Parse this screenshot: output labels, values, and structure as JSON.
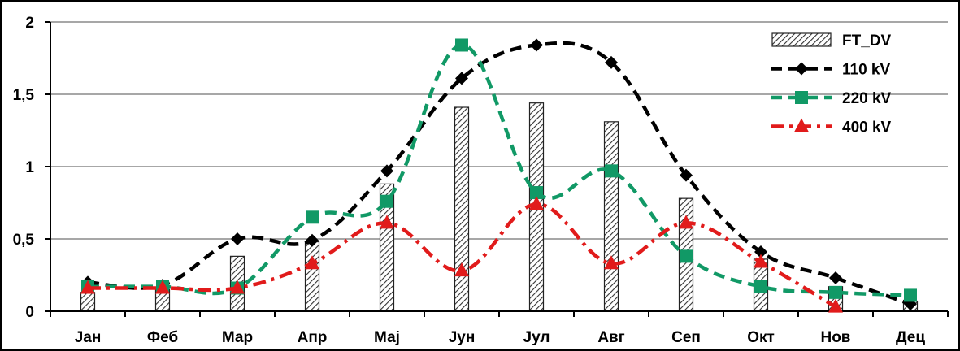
{
  "chart_data": {
    "type": "bar",
    "categories": [
      "Јан",
      "Феб",
      "Мар",
      "Апр",
      "Мај",
      "Јун",
      "Јул",
      "Авг",
      "Сеп",
      "Окт",
      "Нов",
      "Дец"
    ],
    "ylim": [
      0,
      2
    ],
    "yticks": [
      0,
      0.5,
      1,
      1.5,
      2
    ],
    "ytick_labels": [
      "0",
      "0,5",
      "1",
      "1,5",
      "2"
    ],
    "grid": true,
    "legend_position": "top-right",
    "title": "",
    "xlabel": "",
    "ylabel": "",
    "series": [
      {
        "name": "FT_DV",
        "kind": "bar",
        "pattern": "hatched",
        "color": "#555555",
        "values": [
          0.13,
          0.15,
          0.38,
          0.48,
          0.88,
          1.41,
          1.44,
          1.31,
          0.78,
          0.36,
          0.17,
          0.07
        ]
      },
      {
        "name": "110 kV",
        "kind": "line",
        "marker": "diamond",
        "dash": "dashed",
        "color": "#000000",
        "values": [
          0.2,
          0.18,
          0.5,
          0.49,
          0.97,
          1.61,
          1.84,
          1.72,
          0.94,
          0.41,
          0.23,
          0.05
        ]
      },
      {
        "name": "220 kV",
        "kind": "line",
        "marker": "square",
        "dash": "dashed",
        "color": "#119966",
        "values": [
          0.17,
          0.17,
          0.16,
          0.65,
          0.76,
          1.84,
          0.82,
          0.97,
          0.38,
          0.17,
          0.13,
          0.11
        ]
      },
      {
        "name": "400 kV",
        "kind": "line",
        "marker": "triangle",
        "dash": "dashdot",
        "color": "#e11b1b",
        "values": [
          0.16,
          0.16,
          0.16,
          0.33,
          0.61,
          0.28,
          0.74,
          0.33,
          0.61,
          0.34,
          0.03,
          null
        ]
      }
    ]
  }
}
